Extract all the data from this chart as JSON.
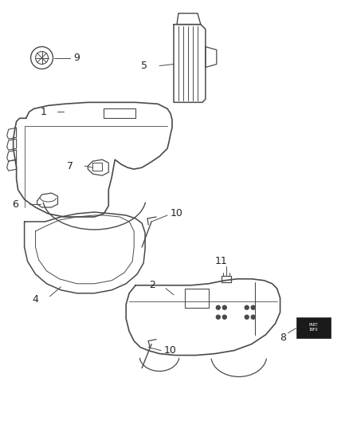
{
  "bg_color": "#ffffff",
  "line_color": "#4a4a4a",
  "label_color": "#222222",
  "figsize": [
    4.38,
    5.33
  ],
  "dpi": 100,
  "label_fontsize": 9
}
